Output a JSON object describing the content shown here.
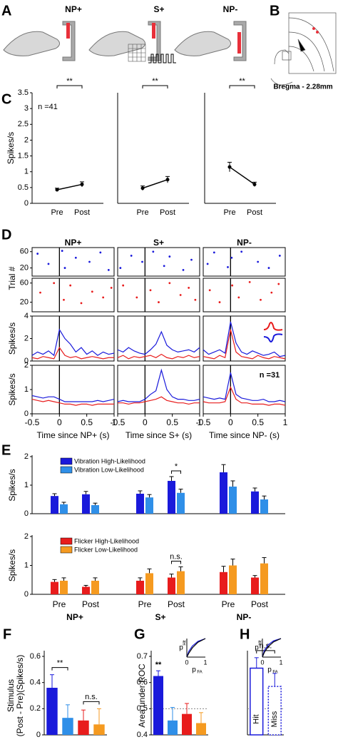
{
  "chart_data": [
    {
      "type": "schematic-a",
      "panel": "A",
      "labels": [
        "NP+",
        "S+",
        "NP-"
      ]
    },
    {
      "type": "schematic-b",
      "panel": "B",
      "caption": "Bregma - 2.28mm"
    },
    {
      "type": "prepost",
      "panel": "C",
      "ylabel": "Spikes/s",
      "annotation": "n =41",
      "significance": "**",
      "categories": [
        "Pre",
        "Post"
      ],
      "ylim": [
        0,
        3.5
      ],
      "yticks": [
        0,
        0.5,
        1,
        1.5,
        2,
        2.5,
        3,
        3.5
      ],
      "series": [
        {
          "color": "#000000",
          "values": [
            0.43,
            0.6
          ],
          "errors": [
            0.05,
            0.08
          ]
        }
      ]
    },
    {
      "type": "prepost",
      "significance": "**",
      "categories": [
        "Pre",
        "Post"
      ],
      "ylim": [
        0,
        3.5
      ],
      "series": [
        {
          "color": "#000000",
          "values": [
            0.48,
            0.75
          ],
          "errors": [
            0.07,
            0.1
          ]
        }
      ]
    },
    {
      "type": "prepost",
      "significance": "**",
      "categories": [
        "Pre",
        "Post"
      ],
      "ylim": [
        0,
        3.5
      ],
      "series": [
        {
          "color": "#000000",
          "values": [
            1.15,
            0.6
          ],
          "errors": [
            0.15,
            0.07
          ]
        }
      ]
    },
    {
      "type": "psth",
      "panel": "D",
      "title": "NP+",
      "xlabel": "Time since NP+ (s)",
      "xlim": [
        -0.5,
        1
      ],
      "xticks": [
        -0.5,
        0,
        0.5,
        1
      ],
      "raster_ylabel": "Trial #",
      "raster_ylim": [
        0,
        70
      ],
      "raster_yticks": [
        20,
        60
      ],
      "rate_ylabel": "Spikes/s",
      "raster_blue": {
        "color": "#1a1adb",
        "x": [
          -0.4,
          -0.2,
          0.05,
          0.1,
          0.3,
          0.55,
          0.75,
          0.9
        ],
        "y": [
          55,
          30,
          62,
          20,
          45,
          35,
          58,
          15
        ]
      },
      "raster_red": {
        "color": "#e81c1c",
        "x": [
          -0.35,
          -0.1,
          0.08,
          0.2,
          0.4,
          0.6,
          0.8,
          0.95
        ],
        "y": [
          40,
          60,
          25,
          55,
          18,
          42,
          30,
          50
        ]
      },
      "x": [
        -0.5,
        -0.4,
        -0.3,
        -0.2,
        -0.1,
        0,
        0.1,
        0.2,
        0.3,
        0.4,
        0.5,
        0.6,
        0.7,
        0.8,
        0.9,
        1
      ],
      "top": {
        "ylim": [
          0,
          4
        ],
        "yticks": [
          0,
          2,
          4
        ],
        "series": [
          {
            "color": "#1a1adb",
            "values": [
              0.5,
              0.8,
              0.6,
              0.9,
              0.5,
              2.8,
              2.0,
              1.5,
              0.8,
              1.2,
              0.6,
              0.9,
              0.5,
              0.8,
              0.6,
              0.7
            ]
          },
          {
            "color": "#e81c1c",
            "values": [
              0.3,
              0.2,
              0.4,
              0.3,
              0.2,
              1.2,
              0.5,
              0.3,
              0.4,
              0.2,
              0.3,
              0.4,
              0.3,
              0.2,
              0.3,
              0.3
            ]
          }
        ]
      },
      "bottom": {
        "ylim": [
          0,
          2
        ],
        "yticks": [
          0,
          1,
          2
        ],
        "series": [
          {
            "color": "#1a1adb",
            "values": [
              0.75,
              0.7,
              0.65,
              0.7,
              0.7,
              0.6,
              0.5,
              0.5,
              0.5,
              0.5,
              0.5,
              0.5,
              0.55,
              0.5,
              0.55,
              0.6
            ]
          },
          {
            "color": "#e81c1c",
            "values": [
              0.6,
              0.55,
              0.5,
              0.55,
              0.5,
              0.45,
              0.4,
              0.4,
              0.35,
              0.4,
              0.4,
              0.35,
              0.4,
              0.4,
              0.4,
              0.4
            ]
          }
        ]
      }
    },
    {
      "type": "psth",
      "title": "S+",
      "xlabel": "Time since S+ (s)",
      "xlim": [
        -0.5,
        1
      ],
      "xticks": [
        -0.5,
        0,
        0.5,
        1
      ],
      "raster_ylim": [
        0,
        70
      ],
      "raster_blue": {
        "color": "#1a1adb",
        "x": [
          -0.45,
          -0.25,
          -0.05,
          0.15,
          0.35,
          0.45,
          0.7,
          0.85
        ],
        "y": [
          20,
          50,
          35,
          60,
          25,
          48,
          15,
          40
        ]
      },
      "raster_red": {
        "color": "#e81c1c",
        "x": [
          -0.4,
          -0.15,
          0.1,
          0.25,
          0.45,
          0.65,
          0.8,
          0.92
        ],
        "y": [
          55,
          30,
          45,
          20,
          60,
          35,
          50,
          25
        ]
      },
      "x": [
        -0.5,
        -0.4,
        -0.3,
        -0.2,
        -0.1,
        0,
        0.1,
        0.2,
        0.3,
        0.4,
        0.5,
        0.6,
        0.7,
        0.8,
        0.9,
        1
      ],
      "top": {
        "ylim": [
          0,
          4
        ],
        "series": [
          {
            "color": "#1a1adb",
            "values": [
              1.0,
              0.8,
              1.2,
              0.9,
              0.7,
              0.6,
              1.0,
              1.5,
              2.6,
              1.4,
              1.0,
              0.8,
              0.9,
              1.0,
              0.8,
              1.2
            ]
          },
          {
            "color": "#e81c1c",
            "values": [
              0.3,
              0.5,
              0.2,
              0.4,
              0.3,
              0.4,
              0.5,
              0.3,
              0.6,
              0.3,
              0.2,
              0.4,
              0.3,
              0.5,
              0.3,
              0.4
            ]
          }
        ]
      },
      "bottom": {
        "ylim": [
          0,
          2
        ],
        "series": [
          {
            "color": "#1a1adb",
            "values": [
              0.5,
              0.55,
              0.5,
              0.5,
              0.5,
              0.6,
              0.8,
              0.95,
              1.8,
              1.0,
              0.7,
              0.6,
              0.6,
              0.55,
              0.55,
              0.6
            ]
          },
          {
            "color": "#e81c1c",
            "values": [
              0.45,
              0.45,
              0.4,
              0.45,
              0.45,
              0.5,
              0.55,
              0.6,
              0.7,
              0.55,
              0.5,
              0.45,
              0.45,
              0.4,
              0.45,
              0.45
            ]
          }
        ]
      }
    },
    {
      "type": "psth",
      "title": "NP-",
      "xlabel": "Time since NP- (s)",
      "xlim": [
        -0.5,
        1
      ],
      "xticks": [
        -0.5,
        0,
        0.5,
        1
      ],
      "raster_ylim": [
        0,
        70
      ],
      "raster_blue": {
        "color": "#1a1adb",
        "x": [
          -0.42,
          -0.3,
          -0.05,
          0.02,
          0.2,
          0.5,
          0.7,
          0.9
        ],
        "y": [
          30,
          58,
          22,
          45,
          60,
          35,
          20,
          50
        ]
      },
      "raster_red": {
        "color": "#e81c1c",
        "x": [
          -0.38,
          -0.2,
          0.03,
          0.15,
          0.35,
          0.55,
          0.75,
          0.88
        ],
        "y": [
          45,
          20,
          55,
          30,
          62,
          25,
          40,
          58
        ]
      },
      "x": [
        -0.5,
        -0.4,
        -0.3,
        -0.2,
        -0.1,
        0,
        0.1,
        0.2,
        0.3,
        0.4,
        0.5,
        0.6,
        0.7,
        0.8,
        0.9,
        1
      ],
      "top": {
        "ylim": [
          0,
          4
        ],
        "series": [
          {
            "color": "#1a1adb",
            "values": [
              1.0,
              0.6,
              0.8,
              1.0,
              0.7,
              3.5,
              1.6,
              0.8,
              0.6,
              0.9,
              0.7,
              0.5,
              0.6,
              0.8,
              0.4,
              0.5
            ]
          },
          {
            "color": "#e81c1c",
            "values": [
              0.4,
              0.3,
              0.2,
              0.5,
              0.3,
              2.8,
              0.8,
              0.4,
              0.3,
              0.2,
              0.5,
              0.3,
              0.2,
              0.4,
              0.3,
              0.2
            ]
          }
        ]
      },
      "bottom": {
        "ylim": [
          0,
          2
        ],
        "annotation": "n =31",
        "series": [
          {
            "color": "#1a1adb",
            "values": [
              0.7,
              0.65,
              0.6,
              0.65,
              0.6,
              1.7,
              0.8,
              0.65,
              0.6,
              0.55,
              0.55,
              0.6,
              0.5,
              0.5,
              0.55,
              0.5
            ]
          },
          {
            "color": "#e81c1c",
            "values": [
              0.5,
              0.45,
              0.45,
              0.45,
              0.5,
              1.1,
              0.6,
              0.45,
              0.45,
              0.4,
              0.4,
              0.4,
              0.35,
              0.4,
              0.4,
              0.35
            ]
          }
        ]
      }
    },
    {
      "type": "grouped-bar",
      "panel": "E",
      "ylabel": "Spikes/s",
      "ylim": [
        0,
        2
      ],
      "yticks": [
        0,
        1,
        2
      ],
      "annotation": "*",
      "series": [
        {
          "name": "Vibration High-Likelihood",
          "color": "#1a1adb",
          "values": [
            0.62,
            0.68,
            0.7,
            1.15,
            1.45,
            0.78
          ],
          "errors": [
            0.08,
            0.1,
            0.1,
            0.15,
            0.27,
            0.12
          ]
        },
        {
          "name": "Vibration Low-Likelihood",
          "color": "#2f8fe8",
          "values": [
            0.33,
            0.3,
            0.57,
            0.73,
            0.95,
            0.5
          ],
          "errors": [
            0.07,
            0.07,
            0.1,
            0.13,
            0.2,
            0.12
          ]
        }
      ]
    },
    {
      "type": "grouped-bar",
      "ylabel": "Spikes/s",
      "ylim": [
        0,
        2
      ],
      "yticks": [
        0,
        1,
        2
      ],
      "annotation": "n.s.",
      "categories": [
        "Pre",
        "Post",
        "Pre",
        "Post",
        "Pre",
        "Post"
      ],
      "groups": [
        "NP+",
        "S+",
        "NP-"
      ],
      "series": [
        {
          "name": "Flicker High-Likelihood",
          "color": "#e81c1c",
          "values": [
            0.43,
            0.26,
            0.47,
            0.58,
            0.77,
            0.58
          ],
          "errors": [
            0.08,
            0.05,
            0.1,
            0.12,
            0.2,
            0.07
          ]
        },
        {
          "name": "Flicker Low-Likelihood",
          "color": "#f59a20",
          "values": [
            0.47,
            0.47,
            0.73,
            0.8,
            1.0,
            1.07
          ],
          "errors": [
            0.1,
            0.1,
            0.15,
            0.15,
            0.22,
            0.2
          ]
        }
      ]
    },
    {
      "type": "bar",
      "panel": "F",
      "ylabel": [
        "Stimulus",
        "(Post - Pre)(Spikes/s)"
      ],
      "ylim": [
        0,
        0.6
      ],
      "yticks": [
        0,
        0.2,
        0.4,
        0.6
      ],
      "values": [
        0.36,
        0.13,
        0.11,
        0.08
      ],
      "errors": [
        0.1,
        0.1,
        0.08,
        0.12
      ],
      "colors": [
        "#1a1adb",
        "#2f8fe8",
        "#e81c1c",
        "#f59a20"
      ],
      "annotations": [
        "**",
        "n.s."
      ]
    },
    {
      "type": "bar",
      "panel": "G",
      "ylabel": [
        "Area under ROC"
      ],
      "ylim": [
        0.4,
        0.7
      ],
      "yticks": [
        0.4,
        0.5,
        0.6,
        0.7
      ],
      "reference_line": 0.5,
      "values": [
        0.625,
        0.455,
        0.48,
        0.445
      ],
      "errors": [
        0.02,
        0.05,
        0.04,
        0.04
      ],
      "colors": [
        "#1a1adb",
        "#2f8fe8",
        "#e81c1c",
        "#f59a20"
      ],
      "significance": "**",
      "inset": {
        "xlabel": "p",
        "xlabel_sub": "FA",
        "ylabel": "p",
        "ylabel_sub": "Hit",
        "xticks": [
          0,
          1
        ],
        "x": [
          0,
          0.1,
          0.3,
          0.6,
          1
        ],
        "series": [
          {
            "color": "#1a1adb",
            "values": [
              0,
              0.3,
              0.6,
              0.85,
              1
            ]
          },
          {
            "color": "#000000",
            "values": [
              0,
              0.2,
              0.5,
              0.8,
              1
            ]
          }
        ]
      }
    },
    {
      "type": "bar",
      "panel": "H",
      "ylim": [
        0.4,
        0.7
      ],
      "reference_line": 0.5,
      "categories": [
        "Hit",
        "Miss"
      ],
      "values": [
        0.655,
        0.585
      ],
      "errors": [
        0.04,
        0.05
      ],
      "colors": [
        "#1a1adb",
        "#1a1adb"
      ],
      "fill": "#ffffff",
      "styles": [
        "solid",
        "dotted"
      ],
      "annotations": [
        "n.s."
      ],
      "inset": {
        "xlabel": "p",
        "xlabel_sub": "FA",
        "ylabel": "p",
        "ylabel_sub": "Hit",
        "xticks": [
          0,
          1
        ],
        "x": [
          0,
          0.1,
          0.3,
          0.6,
          1
        ],
        "series": [
          {
            "color": "#1a1adb",
            "values": [
              0,
              0.35,
              0.65,
              0.88,
              1
            ]
          },
          {
            "color": "#000000",
            "values": [
              0,
              0.25,
              0.55,
              0.82,
              1
            ]
          }
        ]
      }
    }
  ]
}
